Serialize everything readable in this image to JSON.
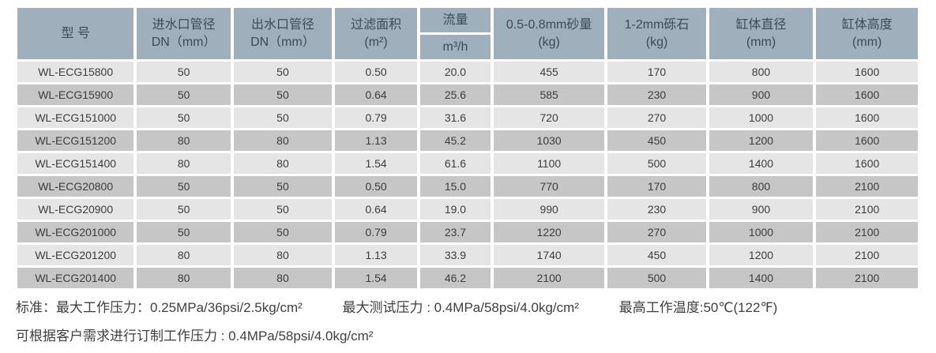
{
  "table": {
    "headers": {
      "model": "型 号",
      "inlet": "进水口管径\nDN（mm）",
      "outlet": "出水口管径\nDN（mm）",
      "filter_area": "过滤面积\n(m²)",
      "flow": "流量",
      "flow_unit": "m³/h",
      "sand": "0.5-0.8mm砂量\n(kg)",
      "gravel": "1-2mm砾石\n(kg)",
      "tank_diameter": "缸体直径\n(mm)",
      "tank_height": "缸体高度\n(mm)"
    },
    "rows": [
      [
        "WL-ECG15800",
        "50",
        "50",
        "0.50",
        "20.0",
        "455",
        "170",
        "800",
        "1600"
      ],
      [
        "WL-ECG15900",
        "50",
        "50",
        "0.64",
        "25.6",
        "585",
        "230",
        "900",
        "1600"
      ],
      [
        "WL-ECG151000",
        "50",
        "50",
        "0.79",
        "31.6",
        "720",
        "270",
        "1000",
        "1600"
      ],
      [
        "WL-ECG151200",
        "80",
        "80",
        "1.13",
        "45.2",
        "1030",
        "450",
        "1200",
        "1600"
      ],
      [
        "WL-ECG151400",
        "80",
        "80",
        "1.54",
        "61.6",
        "1100",
        "500",
        "1400",
        "1600"
      ],
      [
        "WL-ECG20800",
        "50",
        "50",
        "0.50",
        "15.0",
        "770",
        "170",
        "800",
        "2100"
      ],
      [
        "WL-ECG20900",
        "50",
        "50",
        "0.64",
        "19.0",
        "990",
        "230",
        "900",
        "2100"
      ],
      [
        "WL-ECG201000",
        "50",
        "50",
        "0.79",
        "23.7",
        "1220",
        "270",
        "1000",
        "2100"
      ],
      [
        "WL-ECG201200",
        "80",
        "80",
        "1.13",
        "33.9",
        "1740",
        "450",
        "1200",
        "2100"
      ],
      [
        "WL-ECG201400",
        "80",
        "80",
        "1.54",
        "46.2",
        "2100",
        "500",
        "1400",
        "2100"
      ]
    ]
  },
  "notes": {
    "line1": [
      "标准：最大工作压力：0.25MPa/36psi/2.5kg/cm²",
      "最大测试压力 : 0.4MPa/58psi/4.0kg/cm²",
      "最高工作温度:50℃(122℉)"
    ],
    "line2": "可根据客户需求进行订制工作压力 : 0.4MPa/58psi/4.0kg/cm²"
  },
  "colors": {
    "header_bg": "#9fb0bc",
    "header_text": "#3a4b5a",
    "row_light": "#e5e5e5",
    "row_dark": "#c6c6c6",
    "cell_text": "#3c3c3c",
    "note_text": "#3f3f3f"
  }
}
